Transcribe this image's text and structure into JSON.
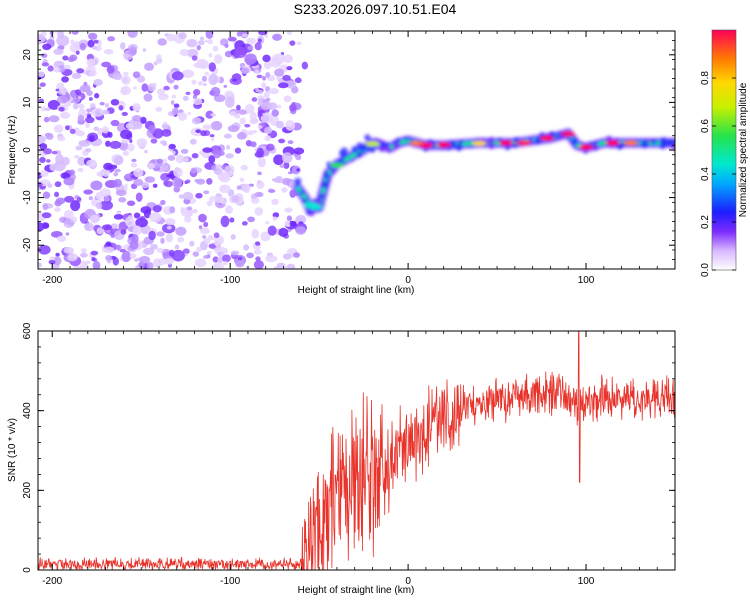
{
  "title": "S233.2026.097.10.51.E04",
  "chart_data": [
    {
      "type": "heatmap",
      "name": "spectrogram",
      "xlabel": "Height of straight line (km)",
      "ylabel": "Frequency (Hz)",
      "xlim": [
        -208,
        150
      ],
      "ylim": [
        -25,
        25
      ],
      "xticks": [
        -200,
        -100,
        0,
        100
      ],
      "yticks": [
        -20,
        -10,
        0,
        10,
        20
      ],
      "noise_region_x": [
        -208,
        -60
      ],
      "signal_track": [
        {
          "x": -62,
          "y": -8
        },
        {
          "x": -58,
          "y": -10
        },
        {
          "x": -55,
          "y": -12.5
        },
        {
          "x": -50,
          "y": -12
        },
        {
          "x": -48,
          "y": -9
        },
        {
          "x": -45,
          "y": -5
        },
        {
          "x": -40,
          "y": -3
        },
        {
          "x": -35,
          "y": -2
        },
        {
          "x": -30,
          "y": -1
        },
        {
          "x": -25,
          "y": 0
        },
        {
          "x": -20,
          "y": 1.5
        },
        {
          "x": -15,
          "y": 1
        },
        {
          "x": -10,
          "y": 0.5
        },
        {
          "x": -5,
          "y": 1.5
        },
        {
          "x": 0,
          "y": 2
        },
        {
          "x": 10,
          "y": 1
        },
        {
          "x": 20,
          "y": 1
        },
        {
          "x": 40,
          "y": 1.5
        },
        {
          "x": 60,
          "y": 1.5
        },
        {
          "x": 80,
          "y": 2.5
        },
        {
          "x": 90,
          "y": 3.5
        },
        {
          "x": 95,
          "y": 1
        },
        {
          "x": 100,
          "y": 0.5
        },
        {
          "x": 110,
          "y": 1.5
        },
        {
          "x": 130,
          "y": 1.5
        },
        {
          "x": 150,
          "y": 1.5
        }
      ],
      "colorbar": {
        "label": "Normalized spectral amplitude",
        "range": [
          0,
          1
        ],
        "ticks": [
          0.0,
          0.2,
          0.4,
          0.6,
          0.8
        ],
        "tick_labels": [
          "0.0",
          "0.2",
          "0.4",
          "0.6",
          "0.8"
        ]
      }
    },
    {
      "type": "line",
      "name": "snr",
      "xlabel": "Height of straight line (km)",
      "ylabel": "SNR (10 * v/v)",
      "xlim": [
        -208,
        150
      ],
      "ylim": [
        0,
        600
      ],
      "xticks": [
        -200,
        -100,
        0,
        100
      ],
      "yticks": [
        0,
        200,
        400,
        600
      ],
      "color": "#e8322a",
      "envelope": [
        {
          "x": -208,
          "y": 15
        },
        {
          "x": -60,
          "y": 15
        },
        {
          "x": -48,
          "y": 120
        },
        {
          "x": -40,
          "y": 180
        },
        {
          "x": -30,
          "y": 200
        },
        {
          "x": -20,
          "y": 240
        },
        {
          "x": -10,
          "y": 280
        },
        {
          "x": 0,
          "y": 320
        },
        {
          "x": 10,
          "y": 350
        },
        {
          "x": 20,
          "y": 380
        },
        {
          "x": 30,
          "y": 410
        },
        {
          "x": 50,
          "y": 430
        },
        {
          "x": 70,
          "y": 440
        },
        {
          "x": 90,
          "y": 445
        },
        {
          "x": 96,
          "y": 420
        },
        {
          "x": 110,
          "y": 430
        },
        {
          "x": 150,
          "y": 430
        }
      ],
      "peak": {
        "x": 96,
        "y": 600
      },
      "dip": {
        "x": 96,
        "y": 220
      }
    }
  ]
}
